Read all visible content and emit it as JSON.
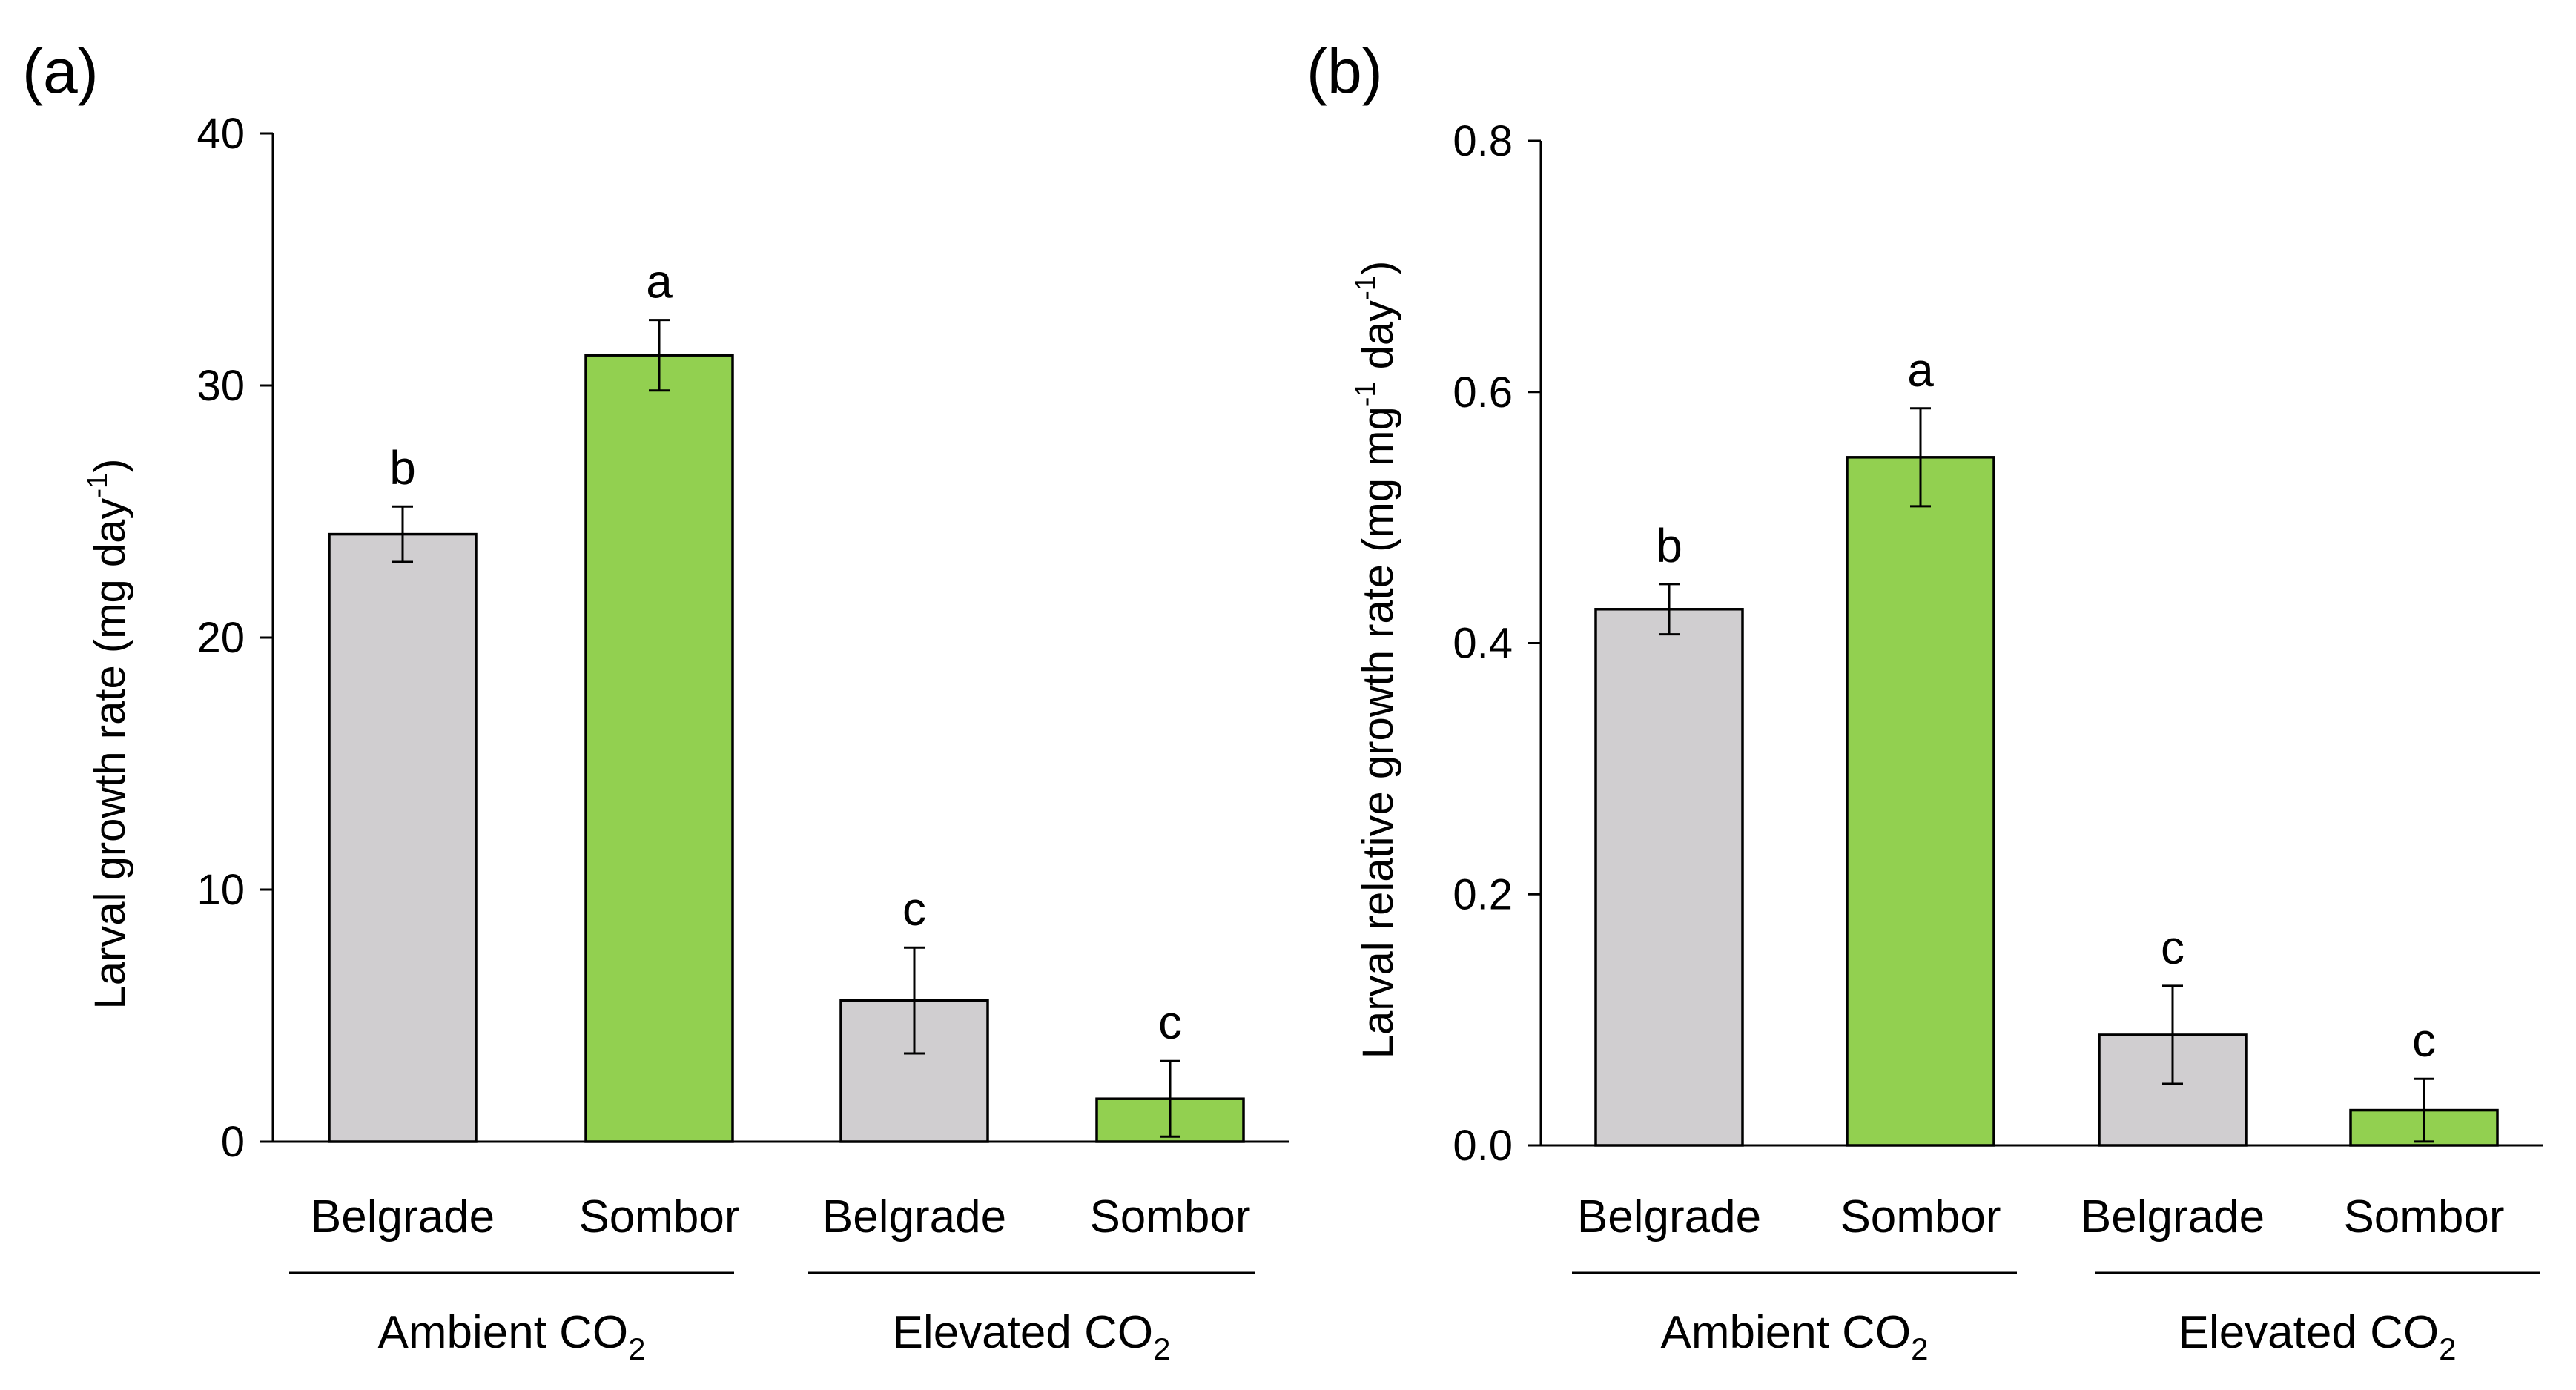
{
  "colors": {
    "belgrade": "#d0ced0",
    "sombor": "#92d050"
  },
  "chart_data": [
    {
      "type": "bar",
      "panel": "(a)",
      "ylabel": "Larval growth rate (mg day",
      "ylabel_sup": "-1",
      "ylabel_end": ")",
      "ylim": [
        0,
        40
      ],
      "yticks": [
        "0",
        "10",
        "20",
        "30",
        "40"
      ],
      "ytick_values": [
        0,
        10,
        20,
        30,
        40
      ],
      "categories": [
        "Belgrade",
        "Sombor",
        "Belgrade",
        "Sombor"
      ],
      "groups": [
        {
          "label": "Ambient CO",
          "sub": "2",
          "members": [
            0,
            1
          ]
        },
        {
          "label": "Elevated CO",
          "sub": "2",
          "members": [
            2,
            3
          ]
        }
      ],
      "values": [
        24.1,
        31.2,
        5.6,
        1.7
      ],
      "errors": [
        1.1,
        1.4,
        2.1,
        1.5
      ],
      "significance": [
        "b",
        "a",
        "c",
        "c"
      ],
      "bar_colors": [
        "belgrade",
        "sombor",
        "belgrade",
        "sombor"
      ]
    },
    {
      "type": "bar",
      "panel": "(b)",
      "ylabel": "Larval relative growth rate (mg mg",
      "ylabel_sup": "-1",
      "ylabel_mid": " day",
      "ylabel_sup2": "-1",
      "ylabel_end": ")",
      "ylim": [
        0,
        0.8
      ],
      "yticks": [
        "0.0",
        "0.2",
        "0.4",
        "0.6",
        "0.8"
      ],
      "ytick_values": [
        0,
        0.2,
        0.4,
        0.6,
        0.8
      ],
      "categories": [
        "Belgrade",
        "Sombor",
        "Belgrade",
        "Sombor"
      ],
      "groups": [
        {
          "label": "Ambient CO",
          "sub": "2",
          "members": [
            0,
            1
          ]
        },
        {
          "label": "Elevated CO",
          "sub": "2",
          "members": [
            2,
            3
          ]
        }
      ],
      "values": [
        0.427,
        0.548,
        0.088,
        0.028
      ],
      "errors": [
        0.02,
        0.039,
        0.039,
        0.025
      ],
      "significance": [
        "b",
        "a",
        "c",
        "c"
      ],
      "bar_colors": [
        "belgrade",
        "sombor",
        "belgrade",
        "sombor"
      ]
    }
  ]
}
